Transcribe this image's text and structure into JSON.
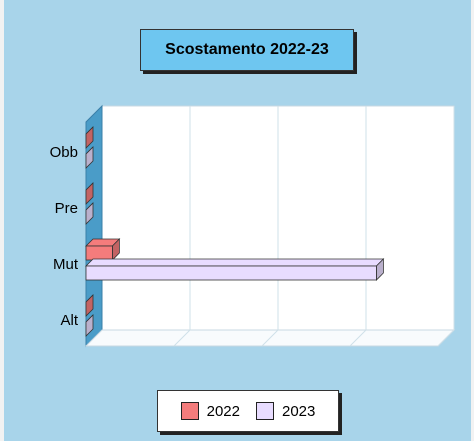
{
  "chart_data": {
    "type": "bar",
    "orientation": "horizontal",
    "title": "Scostamento 2022-23",
    "categories": [
      "Obb",
      "Pre",
      "Mut",
      "Alt"
    ],
    "series": [
      {
        "name": "2022",
        "values": [
          0,
          0,
          3,
          0
        ],
        "color": "#f47c7c"
      },
      {
        "name": "2023",
        "values": [
          0,
          0,
          33,
          0
        ],
        "color": "#e8dcff"
      }
    ],
    "xlim": [
      0,
      40
    ],
    "grid": true,
    "legend_position": "bottom"
  }
}
